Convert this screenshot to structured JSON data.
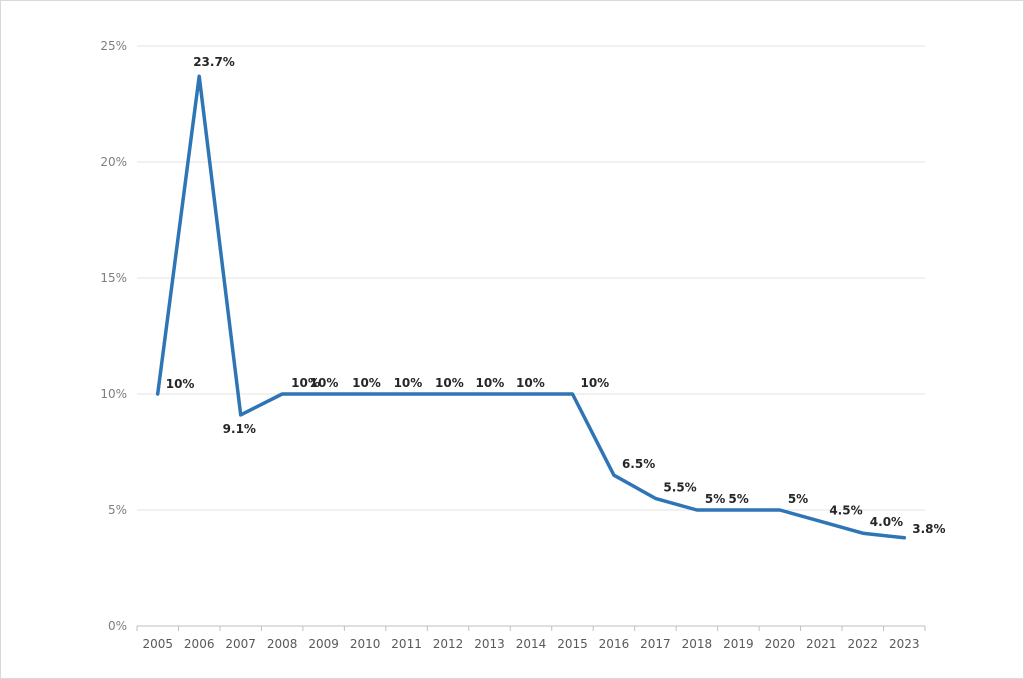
{
  "chart_data": {
    "type": "line",
    "title": "",
    "xlabel": "",
    "ylabel": "",
    "categories": [
      "2005",
      "2006",
      "2007",
      "2008",
      "2009",
      "2010",
      "2011",
      "2012",
      "2013",
      "2014",
      "2015",
      "2016",
      "2017",
      "2018",
      "2019",
      "2020",
      "2021",
      "2022",
      "2023"
    ],
    "y_ticks": [
      "0%",
      "5%",
      "10%",
      "15%",
      "20%",
      "25%"
    ],
    "ylim": [
      0,
      25
    ],
    "grid": true,
    "series": [
      {
        "values": [
          10,
          23.7,
          9.1,
          10,
          10,
          10,
          10,
          10,
          10,
          10,
          10,
          6.5,
          5.5,
          5,
          5,
          5,
          null,
          4.0,
          3.8
        ],
        "labels": [
          "10%",
          "23.7%",
          "9.1%",
          "10%",
          "10%",
          "10%",
          "10%",
          "10%",
          "10%",
          "10%",
          "10%",
          "6.5%",
          "5.5%",
          "5%",
          "5%",
          "5%",
          "4.5%",
          "4.0%",
          "3.8%"
        ],
        "color": "#2e75b6"
      }
    ],
    "line_values": [
      10,
      23.7,
      9.1,
      10,
      10,
      10,
      10,
      10,
      10,
      10,
      10,
      6.5,
      5.5,
      5,
      5,
      5,
      4.5,
      4.0,
      3.8
    ]
  }
}
